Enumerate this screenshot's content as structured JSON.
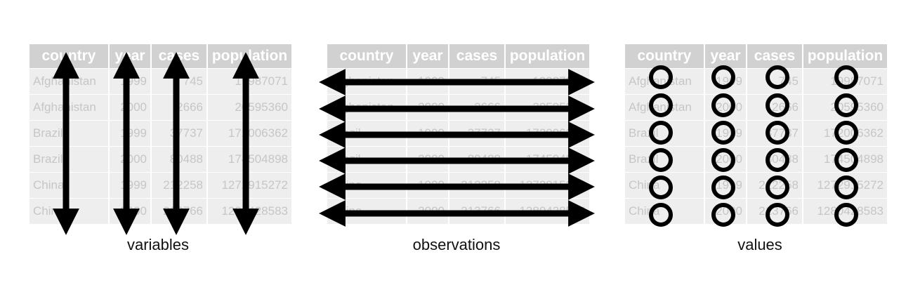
{
  "columns": [
    "country",
    "year",
    "cases",
    "population"
  ],
  "rows": [
    [
      "Afghanistan",
      "1999",
      "745",
      "19987071"
    ],
    [
      "Afghanistan",
      "2000",
      "2666",
      "20595360"
    ],
    [
      "Brazil",
      "1999",
      "37737",
      "172006362"
    ],
    [
      "Brazil",
      "2000",
      "80488",
      "174504898"
    ],
    [
      "China",
      "1999",
      "212258",
      "1272915272"
    ],
    [
      "China",
      "2000",
      "213766",
      "1280428583"
    ]
  ],
  "captions": [
    "variables",
    "observations",
    "values"
  ],
  "colors": {
    "header_bg": "#d1d1d1",
    "cell_bg": "#eeeeee",
    "cell_text": "#c6c6c6",
    "mark": "#000000"
  }
}
